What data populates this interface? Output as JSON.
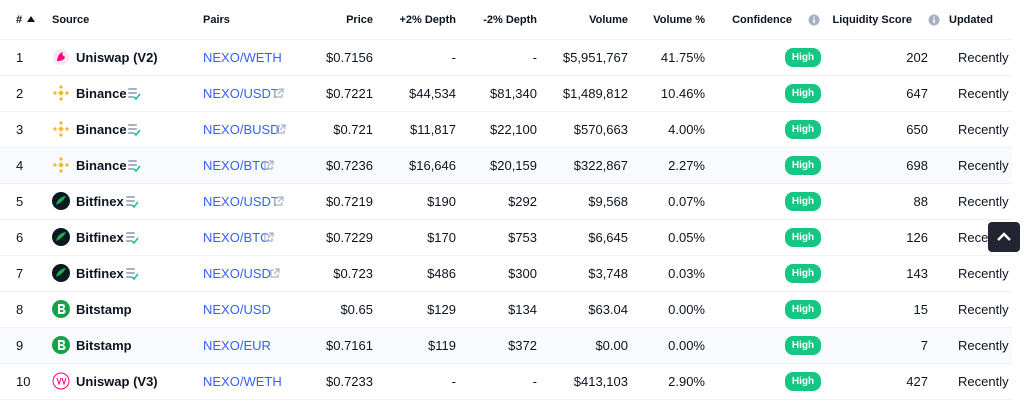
{
  "table": {
    "header": [
      "#",
      "Source",
      "Pairs",
      "Price",
      "+2% Depth",
      "-2% Depth",
      "Volume",
      "Volume %",
      "Confidence",
      "Liquidity Score",
      "Updated"
    ],
    "rows": [
      [
        "1",
        "Uniswap (V2)",
        "NEXO/WETH",
        "$0.7156",
        "-",
        "-",
        "$5,951,767",
        "41.75%",
        "High",
        "202",
        "Recently"
      ],
      [
        "2",
        "Binance",
        "NEXO/USDT",
        "$0.7221",
        "$44,534",
        "$81,340",
        "$1,489,812",
        "10.46%",
        "High",
        "647",
        "Recently"
      ],
      [
        "3",
        "Binance",
        "NEXO/BUSD",
        "$0.721",
        "$11,817",
        "$22,100",
        "$570,663",
        "4.00%",
        "High",
        "650",
        "Recently"
      ],
      [
        "4",
        "Binance",
        "NEXO/BTC",
        "$0.7236",
        "$16,646",
        "$20,159",
        "$322,867",
        "2.27%",
        "High",
        "698",
        "Recently"
      ],
      [
        "5",
        "Bitfinex",
        "NEXO/USDT",
        "$0.7219",
        "$190",
        "$292",
        "$9,568",
        "0.07%",
        "High",
        "88",
        "Recently"
      ],
      [
        "6",
        "Bitfinex",
        "NEXO/BTC",
        "$0.7229",
        "$170",
        "$753",
        "$6,645",
        "0.05%",
        "High",
        "126",
        "Recently"
      ],
      [
        "7",
        "Bitfinex",
        "NEXO/USD",
        "$0.723",
        "$486",
        "$300",
        "$3,748",
        "0.03%",
        "High",
        "143",
        "Recently"
      ],
      [
        "8",
        "Bitstamp",
        "NEXO/USD",
        "$0.65",
        "$129",
        "$134",
        "$63.04",
        "0.00%",
        "High",
        "15",
        "Recently"
      ],
      [
        "9",
        "Bitstamp",
        "NEXO/EUR",
        "$0.7161",
        "$119",
        "$372",
        "$0.00",
        "0.00%",
        "High",
        "7",
        "Recently"
      ],
      [
        "10",
        "Uniswap (V3)",
        "NEXO/WETH",
        "$0.7233",
        "-",
        "-",
        "$413,103",
        "2.90%",
        "High",
        "427",
        "Recently"
      ]
    ]
  }
}
